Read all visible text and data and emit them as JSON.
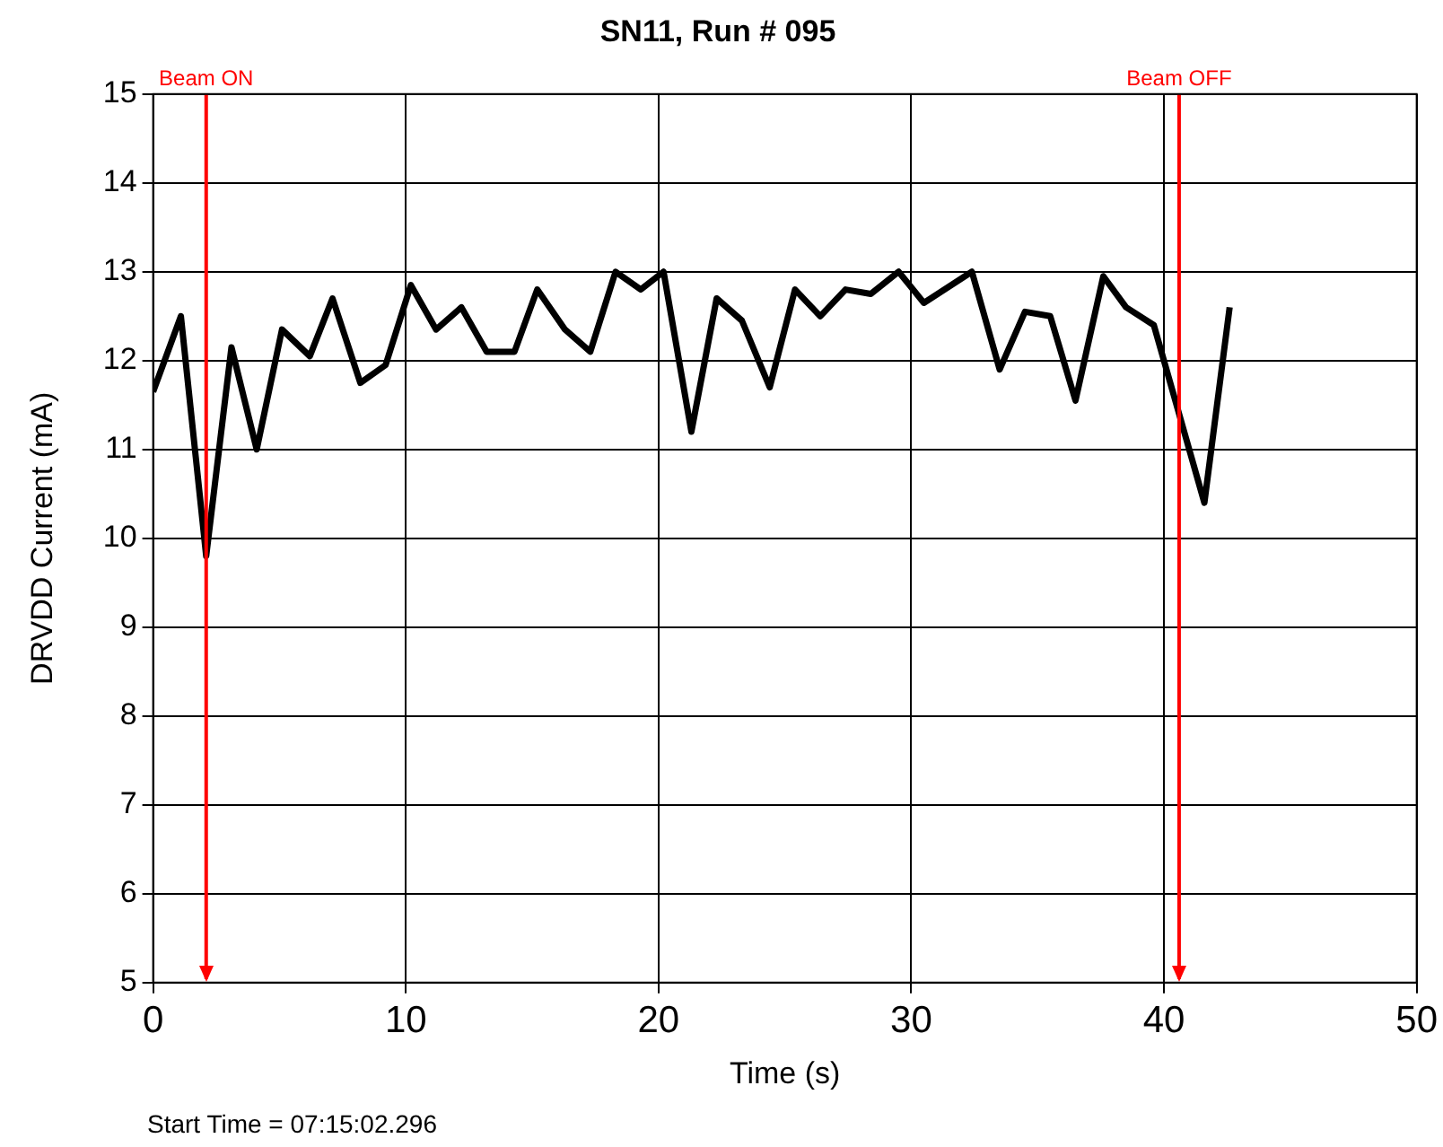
{
  "chart_data": {
    "type": "line",
    "title": "SN11, Run # 095",
    "xlabel": "Time (s)",
    "ylabel": "DRVDD Current (mA)",
    "x": [
      0,
      1.1,
      2.1,
      3.1,
      4.1,
      5.1,
      6.2,
      7.1,
      8.2,
      9.2,
      10.2,
      11.2,
      12.2,
      13.2,
      14.3,
      15.2,
      16.3,
      17.3,
      18.3,
      19.3,
      20.2,
      21.3,
      22.3,
      23.3,
      24.4,
      25.4,
      26.4,
      27.4,
      28.4,
      29.5,
      30.5,
      32.4,
      33.5,
      34.5,
      35.5,
      36.5,
      37.6,
      38.5,
      39.6,
      41.6,
      42.6
    ],
    "series": [
      {
        "color": "#000000",
        "values": [
          11.65,
          12.5,
          9.8,
          12.15,
          11.0,
          12.35,
          12.05,
          12.7,
          11.75,
          11.95,
          12.85,
          12.35,
          12.6,
          12.1,
          12.1,
          12.8,
          12.35,
          12.1,
          13.0,
          12.8,
          13.0,
          11.2,
          12.7,
          12.45,
          11.7,
          12.8,
          12.5,
          12.8,
          12.75,
          13.0,
          12.65,
          13.0,
          11.9,
          12.55,
          12.5,
          11.55,
          12.95,
          12.6,
          12.4,
          10.4,
          12.6
        ]
      }
    ],
    "xlim": [
      0,
      50
    ],
    "xticks": [
      0,
      10,
      20,
      30,
      40,
      50
    ],
    "ylim": [
      5,
      15
    ],
    "yticks": [
      5,
      6,
      7,
      8,
      9,
      10,
      11,
      12,
      13,
      14,
      15
    ],
    "grid": true,
    "legend": false,
    "marker": "none",
    "line_style": "solid",
    "ref_lines": [
      {
        "axis": "x",
        "value": 2.1,
        "label": "Beam ON",
        "color": "#ff0000"
      },
      {
        "axis": "x",
        "value": 40.6,
        "label": "Beam OFF",
        "color": "#ff0000"
      }
    ],
    "annotations": [
      "Start Time = 07:15:02.296"
    ]
  }
}
